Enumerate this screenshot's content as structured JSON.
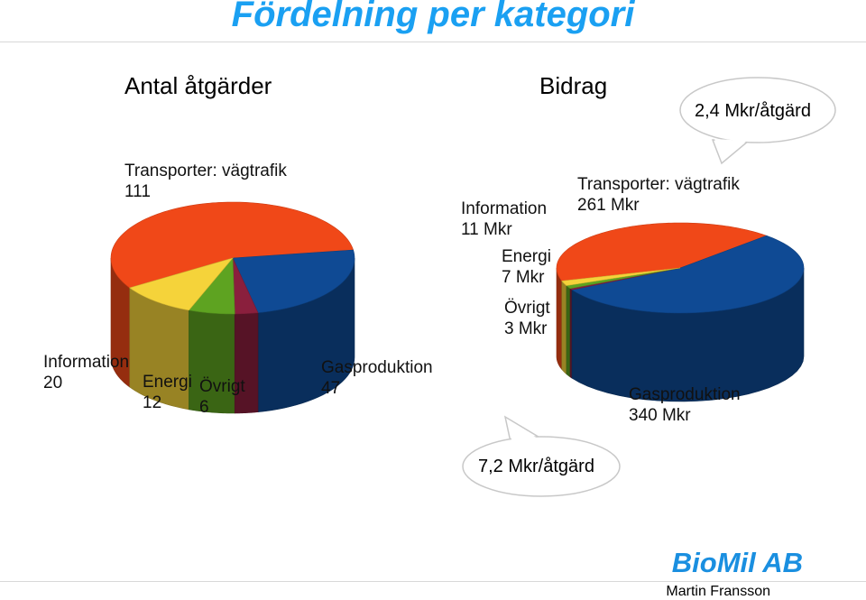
{
  "page": {
    "title": "Fördelning per kategori"
  },
  "left_chart_title": "Antal åtgärder",
  "right_chart_title": "Bidrag",
  "callouts": {
    "top": "2,4 Mkr/åtgärd",
    "bottom": "7,2 Mkr/åtgärd"
  },
  "footer": {
    "brand": "BioMil AB",
    "author": "Martin Fransson"
  },
  "colors": {
    "Transporter: vägtrafik": "#f04818",
    "Gasproduktion": "#0f4a94",
    "Information": "#f5d33a",
    "Energi": "#5ea321",
    "Övrigt": "#8a1f3d"
  },
  "chart_data": [
    {
      "type": "pie",
      "title": "Antal åtgärder",
      "categories": [
        "Transporter: vägtrafik",
        "Gasproduktion",
        "Övrigt",
        "Energi",
        "Information"
      ],
      "values": [
        111,
        47,
        6,
        12,
        20
      ],
      "labels": [
        {
          "name": "Transporter: vägtrafik",
          "value": "111"
        },
        {
          "name": "Gasproduktion",
          "value": "47"
        },
        {
          "name": "Övrigt",
          "value": "6"
        },
        {
          "name": "Energi",
          "value": "12"
        },
        {
          "name": "Information",
          "value": "20"
        }
      ],
      "legend": "none"
    },
    {
      "type": "pie",
      "title": "Bidrag",
      "categories": [
        "Transporter: vägtrafik",
        "Gasproduktion",
        "Övrigt",
        "Energi",
        "Information"
      ],
      "values": [
        261,
        340,
        3,
        7,
        11
      ],
      "labels": [
        {
          "name": "Transporter: vägtrafik",
          "value": "261 Mkr"
        },
        {
          "name": "Gasproduktion",
          "value": "340 Mkr"
        },
        {
          "name": "Övrigt",
          "value": "3 Mkr"
        },
        {
          "name": "Energi",
          "value": "7 Mkr"
        },
        {
          "name": "Information",
          "value": "11 Mkr"
        }
      ],
      "legend": "none"
    }
  ]
}
